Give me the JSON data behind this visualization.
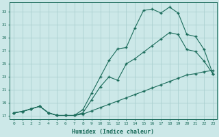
{
  "xlabel": "Humidex (Indice chaleur)",
  "bg_color": "#cce8e8",
  "line_color": "#1a6b5a",
  "grid_color": "#aacfcf",
  "xlim": [
    -0.5,
    23.5
  ],
  "ylim": [
    16.5,
    34.5
  ],
  "xticks": [
    0,
    1,
    2,
    3,
    4,
    5,
    6,
    7,
    8,
    9,
    10,
    11,
    12,
    13,
    14,
    15,
    16,
    17,
    18,
    19,
    20,
    21,
    22,
    23
  ],
  "yticks": [
    17,
    19,
    21,
    23,
    25,
    27,
    29,
    31,
    33
  ],
  "line_top_x": [
    0,
    1,
    2,
    3,
    4,
    5,
    6,
    7,
    8,
    9,
    10,
    11,
    12,
    13,
    14,
    15,
    16,
    17,
    18,
    19,
    20,
    21,
    22,
    23
  ],
  "line_top_y": [
    17.5,
    17.7,
    18.1,
    18.5,
    17.5,
    17.1,
    17.1,
    17.1,
    18.0,
    20.5,
    23.0,
    25.5,
    27.3,
    27.5,
    30.5,
    33.2,
    33.4,
    32.8,
    33.7,
    32.8,
    29.5,
    29.2,
    27.2,
    23.5
  ],
  "line_mid_x": [
    0,
    1,
    2,
    3,
    4,
    5,
    6,
    7,
    8,
    9,
    10,
    11,
    12,
    13,
    14,
    15,
    16,
    17,
    18,
    19,
    20,
    21,
    22,
    23
  ],
  "line_mid_y": [
    17.5,
    17.7,
    18.1,
    18.5,
    17.5,
    17.1,
    17.1,
    17.1,
    17.5,
    19.5,
    21.5,
    23.0,
    22.5,
    25.0,
    25.8,
    26.8,
    27.8,
    28.8,
    29.8,
    29.5,
    27.2,
    26.9,
    25.4,
    23.5
  ],
  "line_bot_x": [
    0,
    1,
    2,
    3,
    4,
    5,
    6,
    7,
    8,
    9,
    10,
    11,
    12,
    13,
    14,
    15,
    16,
    17,
    18,
    19,
    20,
    21,
    22,
    23
  ],
  "line_bot_y": [
    17.5,
    17.7,
    18.1,
    18.5,
    17.5,
    17.1,
    17.1,
    17.1,
    17.3,
    17.8,
    18.3,
    18.8,
    19.3,
    19.8,
    20.3,
    20.8,
    21.3,
    21.8,
    22.3,
    22.8,
    23.3,
    23.5,
    23.8,
    24.0
  ]
}
